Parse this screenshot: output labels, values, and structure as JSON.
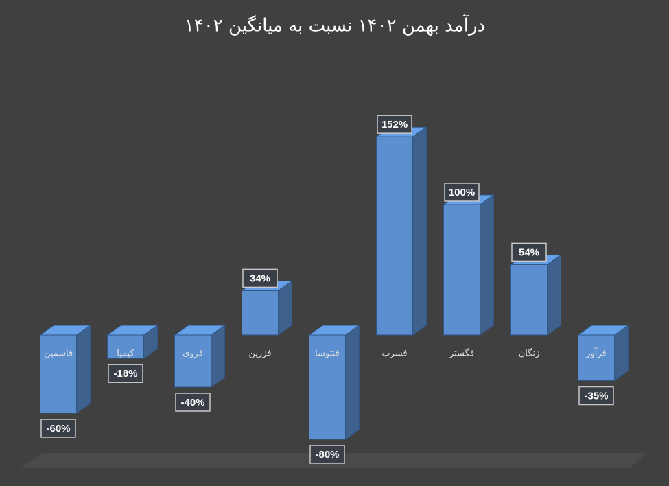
{
  "chart_data": {
    "type": "bar3d",
    "title": "درآمد بهمن ۱۴۰۲ نسبت به میانگین ۱۴۰۲",
    "categories": [
      "فاسمین",
      "کیمیا",
      "فروی",
      "فزرین",
      "فنتوسا",
      "فسرب",
      "فگستر",
      "زنگان",
      "فرآور"
    ],
    "values": [
      -60,
      -18,
      -40,
      34,
      -80,
      152,
      100,
      54,
      -35
    ],
    "value_labels": [
      "-60%",
      "-18%",
      "-40%",
      "34%",
      "-80%",
      "152%",
      "100%",
      "54%",
      "-35%"
    ],
    "color": "#5b8fcf"
  }
}
